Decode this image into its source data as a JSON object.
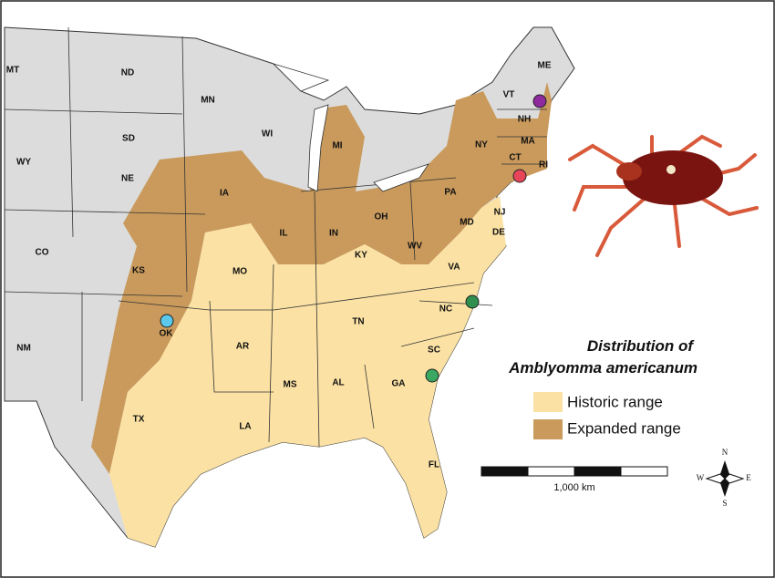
{
  "title": [
    "Distribution of",
    "Amblyomma americanum"
  ],
  "legend": [
    {
      "label": "Historic range",
      "color": "#fbe2a4"
    },
    {
      "label": "Expanded range",
      "color": "#c99a5c"
    }
  ],
  "scale_bar": {
    "label": "1,000 km"
  },
  "compass": [
    "N",
    "E",
    "S",
    "W"
  ],
  "states": [
    "MT",
    "ND",
    "MN",
    "WI",
    "SD",
    "WY",
    "NE",
    "IA",
    "CO",
    "KS",
    "MO",
    "IL",
    "IN",
    "OH",
    "PA",
    "NY",
    "MI",
    "ME",
    "VT",
    "NH",
    "MA",
    "CT",
    "RI",
    "NJ",
    "MD",
    "DE",
    "WV",
    "VA",
    "KY",
    "TN",
    "NC",
    "SC",
    "GA",
    "AL",
    "MS",
    "AR",
    "OK",
    "TX",
    "LA",
    "FL",
    "NM"
  ]
}
